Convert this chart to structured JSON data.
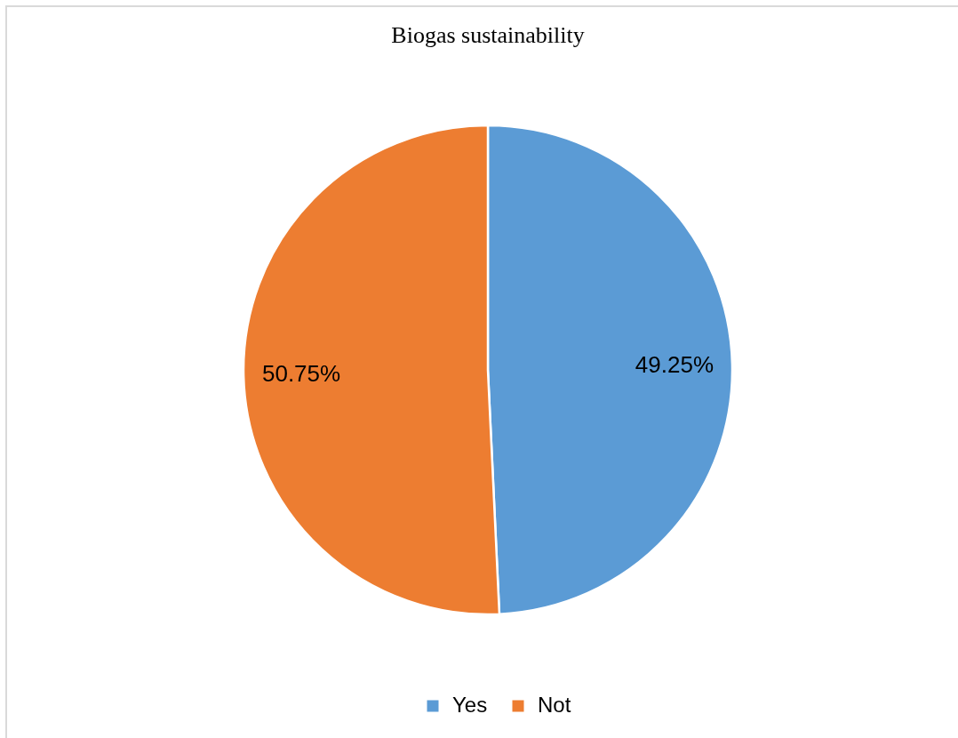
{
  "chart_data": {
    "type": "pie",
    "title": "Biogas sustainability",
    "categories": [
      "Yes",
      "Not"
    ],
    "values": [
      49.25,
      50.75
    ],
    "colors": [
      "#5b9bd5",
      "#ed7d31"
    ],
    "value_labels": [
      "49.25%",
      "50.75%"
    ],
    "legend": "bottom"
  }
}
